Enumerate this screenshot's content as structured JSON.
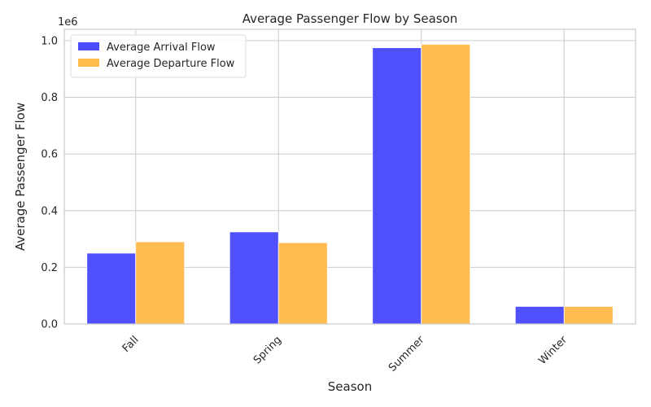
{
  "chart_data": {
    "type": "bar",
    "title": "Average Passenger Flow by Season",
    "xlabel": "Season",
    "ylabel": "Average Passenger Flow",
    "y_offset_label": "1e6",
    "categories": [
      "Fall",
      "Spring",
      "Summer",
      "Winter"
    ],
    "series": [
      {
        "name": "Average Arrival Flow",
        "color": "#4c4cff",
        "values": [
          250000,
          325000,
          975000,
          62000
        ]
      },
      {
        "name": "Average Departure Flow",
        "color": "#ffbb4c",
        "values": [
          290000,
          287000,
          987000,
          62000
        ]
      }
    ],
    "ylim": [
      0,
      1040000
    ],
    "yticks": [
      0,
      200000,
      400000,
      600000,
      800000,
      1000000
    ],
    "ytick_labels": [
      "0.0",
      "0.2",
      "0.4",
      "0.6",
      "0.8",
      "1.0"
    ],
    "grid": true,
    "legend_position": "top-left"
  }
}
